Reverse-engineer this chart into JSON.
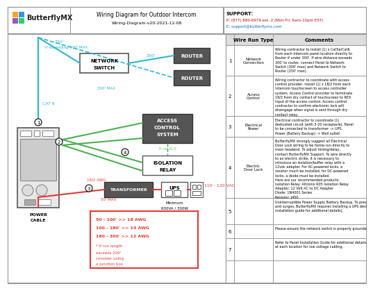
{
  "title": "Wiring Diagram for Outdoor Intercom",
  "subtitle": "Wiring-Diagram-v20-2021-12-08",
  "support_title": "SUPPORT:",
  "support_phone": "P: (877) 880-6979 ext. 2 (Mon-Fri, 6am-10pm EST)",
  "support_email": "E: support@butterflymx.com",
  "cyan": "#29b6d4",
  "green": "#4caf50",
  "red": "#e53935",
  "dark_gray": "#555555",
  "mid_gray": "#888888",
  "light_gray": "#dddddd",
  "wire_types": [
    "Network\nConnection",
    "Access\nControl",
    "Electrical\nPower",
    "Electric\nDoor Lock",
    "",
    "",
    ""
  ],
  "row_numbers": [
    1,
    2,
    3,
    4,
    5,
    6,
    7
  ],
  "comments": [
    "Wiring contractor to install (1) x Cat5e/Cat6\nfrom each Intercom panel location directly to\nRouter if under 300'. If wire distance exceeds\n300' to router, connect Panel to Network\nSwitch (300' max) and Network Switch to\nRouter (250' max).",
    "Wiring contractor to coordinate with access\ncontrol provider, install (1) x 18/2 from each\nIntercom touchscreen to access controller\nsystem. Access Control provider to terminate\n18/2 from dry contact of touchscreen to REX\nInput of the access control. Access control\ncontractor to confirm electronic lock will\ndisengage when signal is sent through dry\ncontact relay.",
    "Electrical contractor to coordinate (1)\ndedicated circuit (with 5-20 receptacle). Panel\nto be connected to transformer -> UPS\nPower (Battery Backup) -> Wall outlet",
    "ButterflyMX strongly suggest all Electrical\nDoor Lock wiring to be home-run directly to\nmain headend. To adjust timing/delay,\ncontact ButterflyMX Support. To wire directly\nto an electric strike, it is necessary to\nintroduce an isolation/buffer relay with a\n12vdc adapter. For AC-powered locks, a\nresistor much be installed; for DC-powered\nlocks, a diode must be installed.\nHere are our recommended products:\nIsolation Relay: Altronix R05 Isolation Relay\nAdapter: 12 Volt AC to DC Adapter\nDiode: 1N4001 Series\nResistor: J450",
    "Uninterruptible Power Supply Battery Backup. To prevent voltage drops\nand surges, ButterflyMX requires installing a UPS device (see panel\ninstallation guide for additional details).",
    "Please ensure the network switch is properly grounded.",
    "Refer to Panel Installation Guide for additional details. Leave 6' service loop\nat each location for low voltage cabling."
  ]
}
